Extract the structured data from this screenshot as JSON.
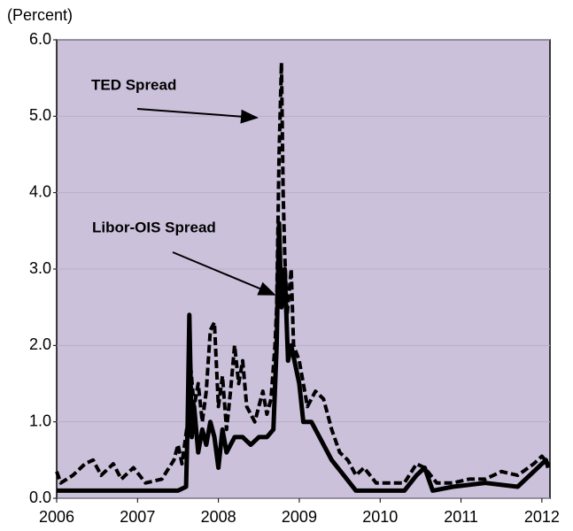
{
  "chart_data": {
    "type": "line",
    "unit_label": "(Percent)",
    "annotations": [
      "TED Spread",
      "Libor-OIS Spread"
    ],
    "xlim": [
      2006,
      2012.1
    ],
    "xticks": [
      2006,
      2007,
      2008,
      2009,
      2010,
      2011,
      2012
    ],
    "ylim": [
      0,
      6
    ],
    "yticks": [
      {
        "value": 0,
        "label": "0.0"
      },
      {
        "value": 1,
        "label": "1.0"
      },
      {
        "value": 2,
        "label": "2.0"
      },
      {
        "value": 3,
        "label": "3.0"
      },
      {
        "value": 4,
        "label": "4.0"
      },
      {
        "value": 5,
        "label": "5.0"
      },
      {
        "value": 6,
        "label": "6.0"
      }
    ],
    "grid": true,
    "background": "#ccc1db",
    "series": [
      {
        "name": "TED Spread",
        "color": "#000000",
        "dashed": true,
        "x": [
          2006.0,
          2006.05,
          2006.2,
          2006.35,
          2006.45,
          2006.55,
          2006.7,
          2006.8,
          2006.95,
          2007.1,
          2007.3,
          2007.45,
          2007.5,
          2007.55,
          2007.62,
          2007.65,
          2007.7,
          2007.75,
          2007.8,
          2007.85,
          2007.9,
          2007.95,
          2008.0,
          2008.05,
          2008.1,
          2008.15,
          2008.2,
          2008.25,
          2008.3,
          2008.35,
          2008.45,
          2008.55,
          2008.6,
          2008.65,
          2008.7,
          2008.72,
          2008.75,
          2008.78,
          2008.8,
          2008.82,
          2008.85,
          2008.9,
          2008.93,
          2009.0,
          2009.05,
          2009.1,
          2009.2,
          2009.3,
          2009.4,
          2009.5,
          2009.6,
          2009.7,
          2009.8,
          2009.95,
          2010.1,
          2010.3,
          2010.45,
          2010.55,
          2010.7,
          2010.9,
          2011.1,
          2011.3,
          2011.5,
          2011.7,
          2011.9,
          2012.0,
          2012.08
        ],
        "values": [
          0.35,
          0.2,
          0.3,
          0.45,
          0.5,
          0.3,
          0.45,
          0.25,
          0.4,
          0.2,
          0.25,
          0.5,
          0.7,
          0.45,
          1.0,
          1.8,
          1.2,
          1.5,
          1.0,
          1.4,
          2.2,
          2.3,
          1.2,
          1.6,
          0.9,
          1.4,
          2.0,
          1.5,
          1.8,
          1.2,
          1.0,
          1.4,
          1.1,
          1.3,
          2.0,
          2.5,
          4.5,
          5.7,
          4.0,
          3.2,
          2.4,
          3.0,
          2.0,
          1.8,
          1.5,
          1.2,
          1.4,
          1.3,
          0.9,
          0.6,
          0.5,
          0.3,
          0.4,
          0.2,
          0.2,
          0.2,
          0.45,
          0.4,
          0.2,
          0.2,
          0.25,
          0.25,
          0.35,
          0.3,
          0.45,
          0.55,
          0.45
        ]
      },
      {
        "name": "Libor-OIS Spread",
        "color": "#000000",
        "dashed": false,
        "x": [
          2006.0,
          2006.5,
          2007.0,
          2007.5,
          2007.6,
          2007.62,
          2007.64,
          2007.67,
          2007.7,
          2007.75,
          2007.8,
          2007.85,
          2007.9,
          2007.95,
          2008.0,
          2008.05,
          2008.1,
          2008.2,
          2008.3,
          2008.4,
          2008.5,
          2008.6,
          2008.68,
          2008.72,
          2008.75,
          2008.78,
          2008.82,
          2008.86,
          2008.9,
          2009.0,
          2009.05,
          2009.15,
          2009.25,
          2009.4,
          2009.55,
          2009.7,
          2010.0,
          2010.3,
          2010.45,
          2010.55,
          2010.65,
          2010.9,
          2011.3,
          2011.7,
          2011.9,
          2012.05,
          2012.08
        ],
        "values": [
          0.1,
          0.1,
          0.1,
          0.1,
          0.15,
          1.0,
          2.4,
          0.8,
          1.2,
          0.6,
          0.9,
          0.7,
          1.0,
          0.8,
          0.4,
          0.9,
          0.6,
          0.8,
          0.8,
          0.7,
          0.8,
          0.8,
          0.9,
          2.0,
          3.6,
          2.5,
          3.0,
          1.8,
          2.0,
          1.5,
          1.0,
          1.0,
          0.8,
          0.5,
          0.3,
          0.1,
          0.1,
          0.1,
          0.3,
          0.4,
          0.1,
          0.15,
          0.2,
          0.15,
          0.35,
          0.5,
          0.4
        ]
      }
    ]
  }
}
